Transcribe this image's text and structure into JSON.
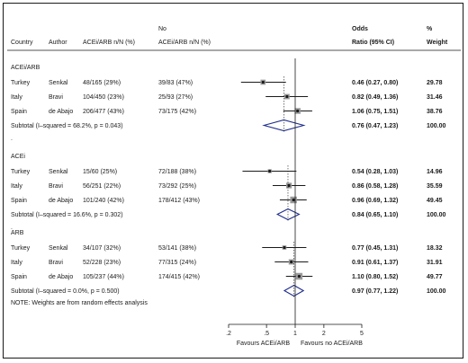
{
  "chart_data": {
    "type": "forest",
    "scale": "log",
    "xlim": [
      0.2,
      5
    ],
    "ticks": [
      {
        "v": 0.2,
        "label": ".2"
      },
      {
        "v": 0.5,
        "label": ".5"
      },
      {
        "v": 1,
        "label": "1"
      },
      {
        "v": 2,
        "label": "2"
      },
      {
        "v": 5,
        "label": "5"
      }
    ],
    "xlabel_left": "Favours ACEi/ARB",
    "xlabel_right": "Favours no ACEi/ARB",
    "headers": {
      "country": "Country",
      "author": "Author",
      "treated": "ACEi/ARB n/N (%)",
      "control_line1": "No",
      "control_line2": "ACEi/ARB n/N (%)",
      "or_line1": "Odds",
      "or_line2": "Ratio (95% CI)",
      "weight_line1": "%",
      "weight_line2": "Weight"
    },
    "groups": [
      {
        "label": "ACEi/ARB",
        "studies": [
          {
            "country": "Turkey",
            "author": "Senkal",
            "treated": "48/165 (29%)",
            "control": "39/83 (47%)",
            "or": 0.46,
            "lo": 0.27,
            "hi": 0.8,
            "or_text": "0.46 (0.27, 0.80)",
            "weight": "29.78"
          },
          {
            "country": "Italy",
            "author": "Bravi",
            "treated": "104/450 (23%)",
            "control": "25/93 (27%)",
            "or": 0.82,
            "lo": 0.49,
            "hi": 1.36,
            "or_text": "0.82 (0.49, 1.36)",
            "weight": "31.46"
          },
          {
            "country": "Spain",
            "author": "de Abajo",
            "treated": "206/477 (43%)",
            "control": "73/175 (42%)",
            "or": 1.06,
            "lo": 0.75,
            "hi": 1.51,
            "or_text": "1.06 (0.75, 1.51)",
            "weight": "38.76"
          }
        ],
        "subtotal": {
          "label": "Subtotal  (I–squared = 68.2%, p = 0.043)",
          "or": 0.76,
          "lo": 0.47,
          "hi": 1.23,
          "or_text": "0.76 (0.47, 1.23)",
          "weight": "100.00"
        }
      },
      {
        "label": "ACEi",
        "studies": [
          {
            "country": "Turkey",
            "author": "Senkal",
            "treated": "15/60 (25%)",
            "control": "72/188 (38%)",
            "or": 0.54,
            "lo": 0.28,
            "hi": 1.03,
            "or_text": "0.54 (0.28, 1.03)",
            "weight": "14.96"
          },
          {
            "country": "Italy",
            "author": "Bravi",
            "treated": "56/251 (22%)",
            "control": "73/292 (25%)",
            "or": 0.86,
            "lo": 0.58,
            "hi": 1.28,
            "or_text": "0.86 (0.58, 1.28)",
            "weight": "35.59"
          },
          {
            "country": "Spain",
            "author": "de Abajo",
            "treated": "101/240 (42%)",
            "control": "178/412 (43%)",
            "or": 0.96,
            "lo": 0.69,
            "hi": 1.32,
            "or_text": "0.96 (0.69, 1.32)",
            "weight": "49.45"
          }
        ],
        "subtotal": {
          "label": "Subtotal  (I–squared = 16.6%, p = 0.302)",
          "or": 0.84,
          "lo": 0.65,
          "hi": 1.1,
          "or_text": "0.84 (0.65, 1.10)",
          "weight": "100.00"
        }
      },
      {
        "label": "ARB",
        "studies": [
          {
            "country": "Turkey",
            "author": "Senkal",
            "treated": "34/107 (32%)",
            "control": "53/141 (38%)",
            "or": 0.77,
            "lo": 0.45,
            "hi": 1.31,
            "or_text": "0.77 (0.45, 1.31)",
            "weight": "18.32"
          },
          {
            "country": "Italy",
            "author": "Bravi",
            "treated": "52/228 (23%)",
            "control": "77/315 (24%)",
            "or": 0.91,
            "lo": 0.61,
            "hi": 1.37,
            "or_text": "0.91 (0.61, 1.37)",
            "weight": "31.91"
          },
          {
            "country": "Spain",
            "author": "de Abajo",
            "treated": "105/237 (44%)",
            "control": "174/415 (42%)",
            "or": 1.1,
            "lo": 0.8,
            "hi": 1.52,
            "or_text": "1.10 (0.80, 1.52)",
            "weight": "49.77"
          }
        ],
        "subtotal": {
          "label": "Subtotal  (I–squared = 0.0%, p = 0.500)",
          "or": 0.97,
          "lo": 0.77,
          "hi": 1.22,
          "or_text": "0.97 (0.77, 1.22)",
          "weight": "100.00"
        }
      }
    ],
    "note": "NOTE: Weights are from random effects analysis",
    "colors": {
      "ink": "#1a1a1a",
      "box": "#9a9a9a",
      "diamond": "#1f2d8c"
    }
  }
}
